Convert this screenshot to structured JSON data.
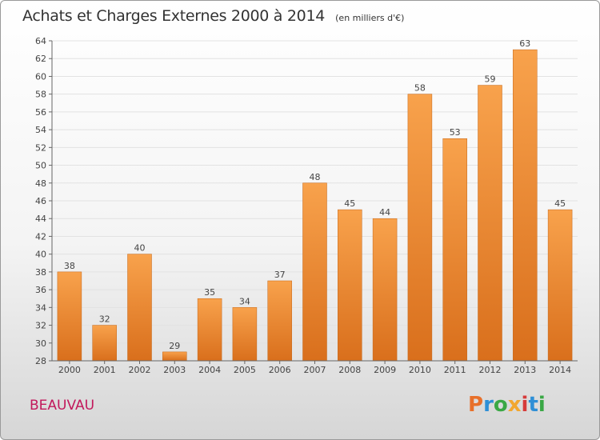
{
  "title": "Achats et Charges Externes 2000 à 2014",
  "unit": "(en milliers d'€)",
  "commune": "BEAUVAU",
  "logo": {
    "letters": [
      "P",
      "r",
      "o",
      "x",
      "i",
      "t",
      "i"
    ],
    "colors": [
      "#e8702a",
      "#2e8fd6",
      "#3aa845",
      "#f2a72f",
      "#d63b3b",
      "#2e8fd6",
      "#3aa845"
    ]
  },
  "colors": {
    "bar_top": "#f8a24c",
    "bar_bottom": "#d96f1c",
    "bar_edge": "#c56617"
  },
  "chart_data": {
    "type": "bar",
    "categories": [
      "2000",
      "2001",
      "2002",
      "2003",
      "2004",
      "2005",
      "2006",
      "2007",
      "2008",
      "2009",
      "2010",
      "2011",
      "2012",
      "2013",
      "2014"
    ],
    "values": [
      38,
      32,
      40,
      29,
      35,
      34,
      37,
      48,
      45,
      44,
      58,
      53,
      59,
      63,
      45
    ],
    "ylim": [
      28,
      64
    ],
    "yticks": [
      28,
      30,
      32,
      34,
      36,
      38,
      40,
      42,
      44,
      46,
      48,
      50,
      52,
      54,
      56,
      58,
      60,
      62,
      64
    ],
    "grid": true
  }
}
